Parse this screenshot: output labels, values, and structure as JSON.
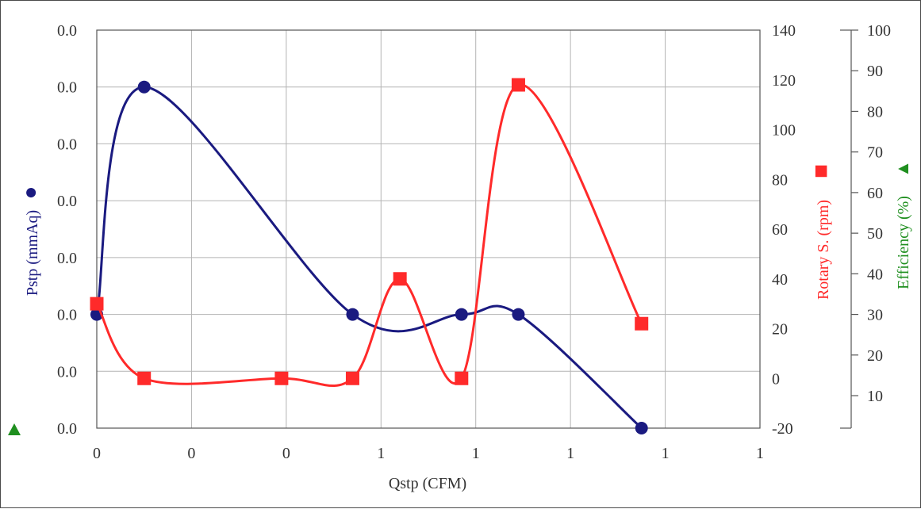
{
  "colors": {
    "pressure": "#1a1a80",
    "rotary": "#ff2a2a",
    "efficiency": "#1f8f1f",
    "grid": "#b4b4b4",
    "axis": "#555555"
  },
  "chart_data": {
    "type": "line",
    "xlabel": "Qstp (CFM)",
    "x_tick_labels": [
      "0",
      "0",
      "0",
      "1",
      "1",
      "1",
      "1",
      "1"
    ],
    "left_axis": {
      "label": "Pstp (mmAq)",
      "marker": "●",
      "tick_labels": [
        "0.0",
        "0.0",
        "0.0",
        "0.0",
        "0.0",
        "0.0",
        "0.0",
        "0.0"
      ]
    },
    "right_axis_1": {
      "label": "Rotary S. (rpm)",
      "marker": "■",
      "range": [
        -20,
        140
      ],
      "tick_labels": [
        "-20",
        "0",
        "20",
        "40",
        "60",
        "80",
        "100",
        "120",
        "140"
      ]
    },
    "right_axis_2": {
      "label": "Efficiency (%)",
      "marker": "▲",
      "range": [
        2,
        100
      ],
      "tick_labels": [
        "10",
        "20",
        "30",
        "40",
        "50",
        "60",
        "70",
        "80",
        "90",
        "100"
      ]
    },
    "grid": true,
    "series": [
      {
        "name": "Pstp",
        "axis": "left",
        "marker": "circle",
        "points": [
          [
            0.0,
            2.0
          ],
          [
            0.05,
            6.0
          ],
          [
            0.27,
            2.0
          ],
          [
            0.385,
            2.0
          ],
          [
            0.445,
            2.0
          ],
          [
            0.575,
            0.0
          ]
        ]
      },
      {
        "name": "Rotary S.",
        "axis": "rpm",
        "marker": "square",
        "points": [
          [
            0.0,
            30
          ],
          [
            0.05,
            0
          ],
          [
            0.195,
            0
          ],
          [
            0.27,
            0
          ],
          [
            0.32,
            40
          ],
          [
            0.385,
            0
          ],
          [
            0.445,
            118
          ],
          [
            0.575,
            22
          ]
        ]
      },
      {
        "name": "Efficiency",
        "axis": "efficiency",
        "marker": "triangle",
        "points": []
      }
    ]
  }
}
